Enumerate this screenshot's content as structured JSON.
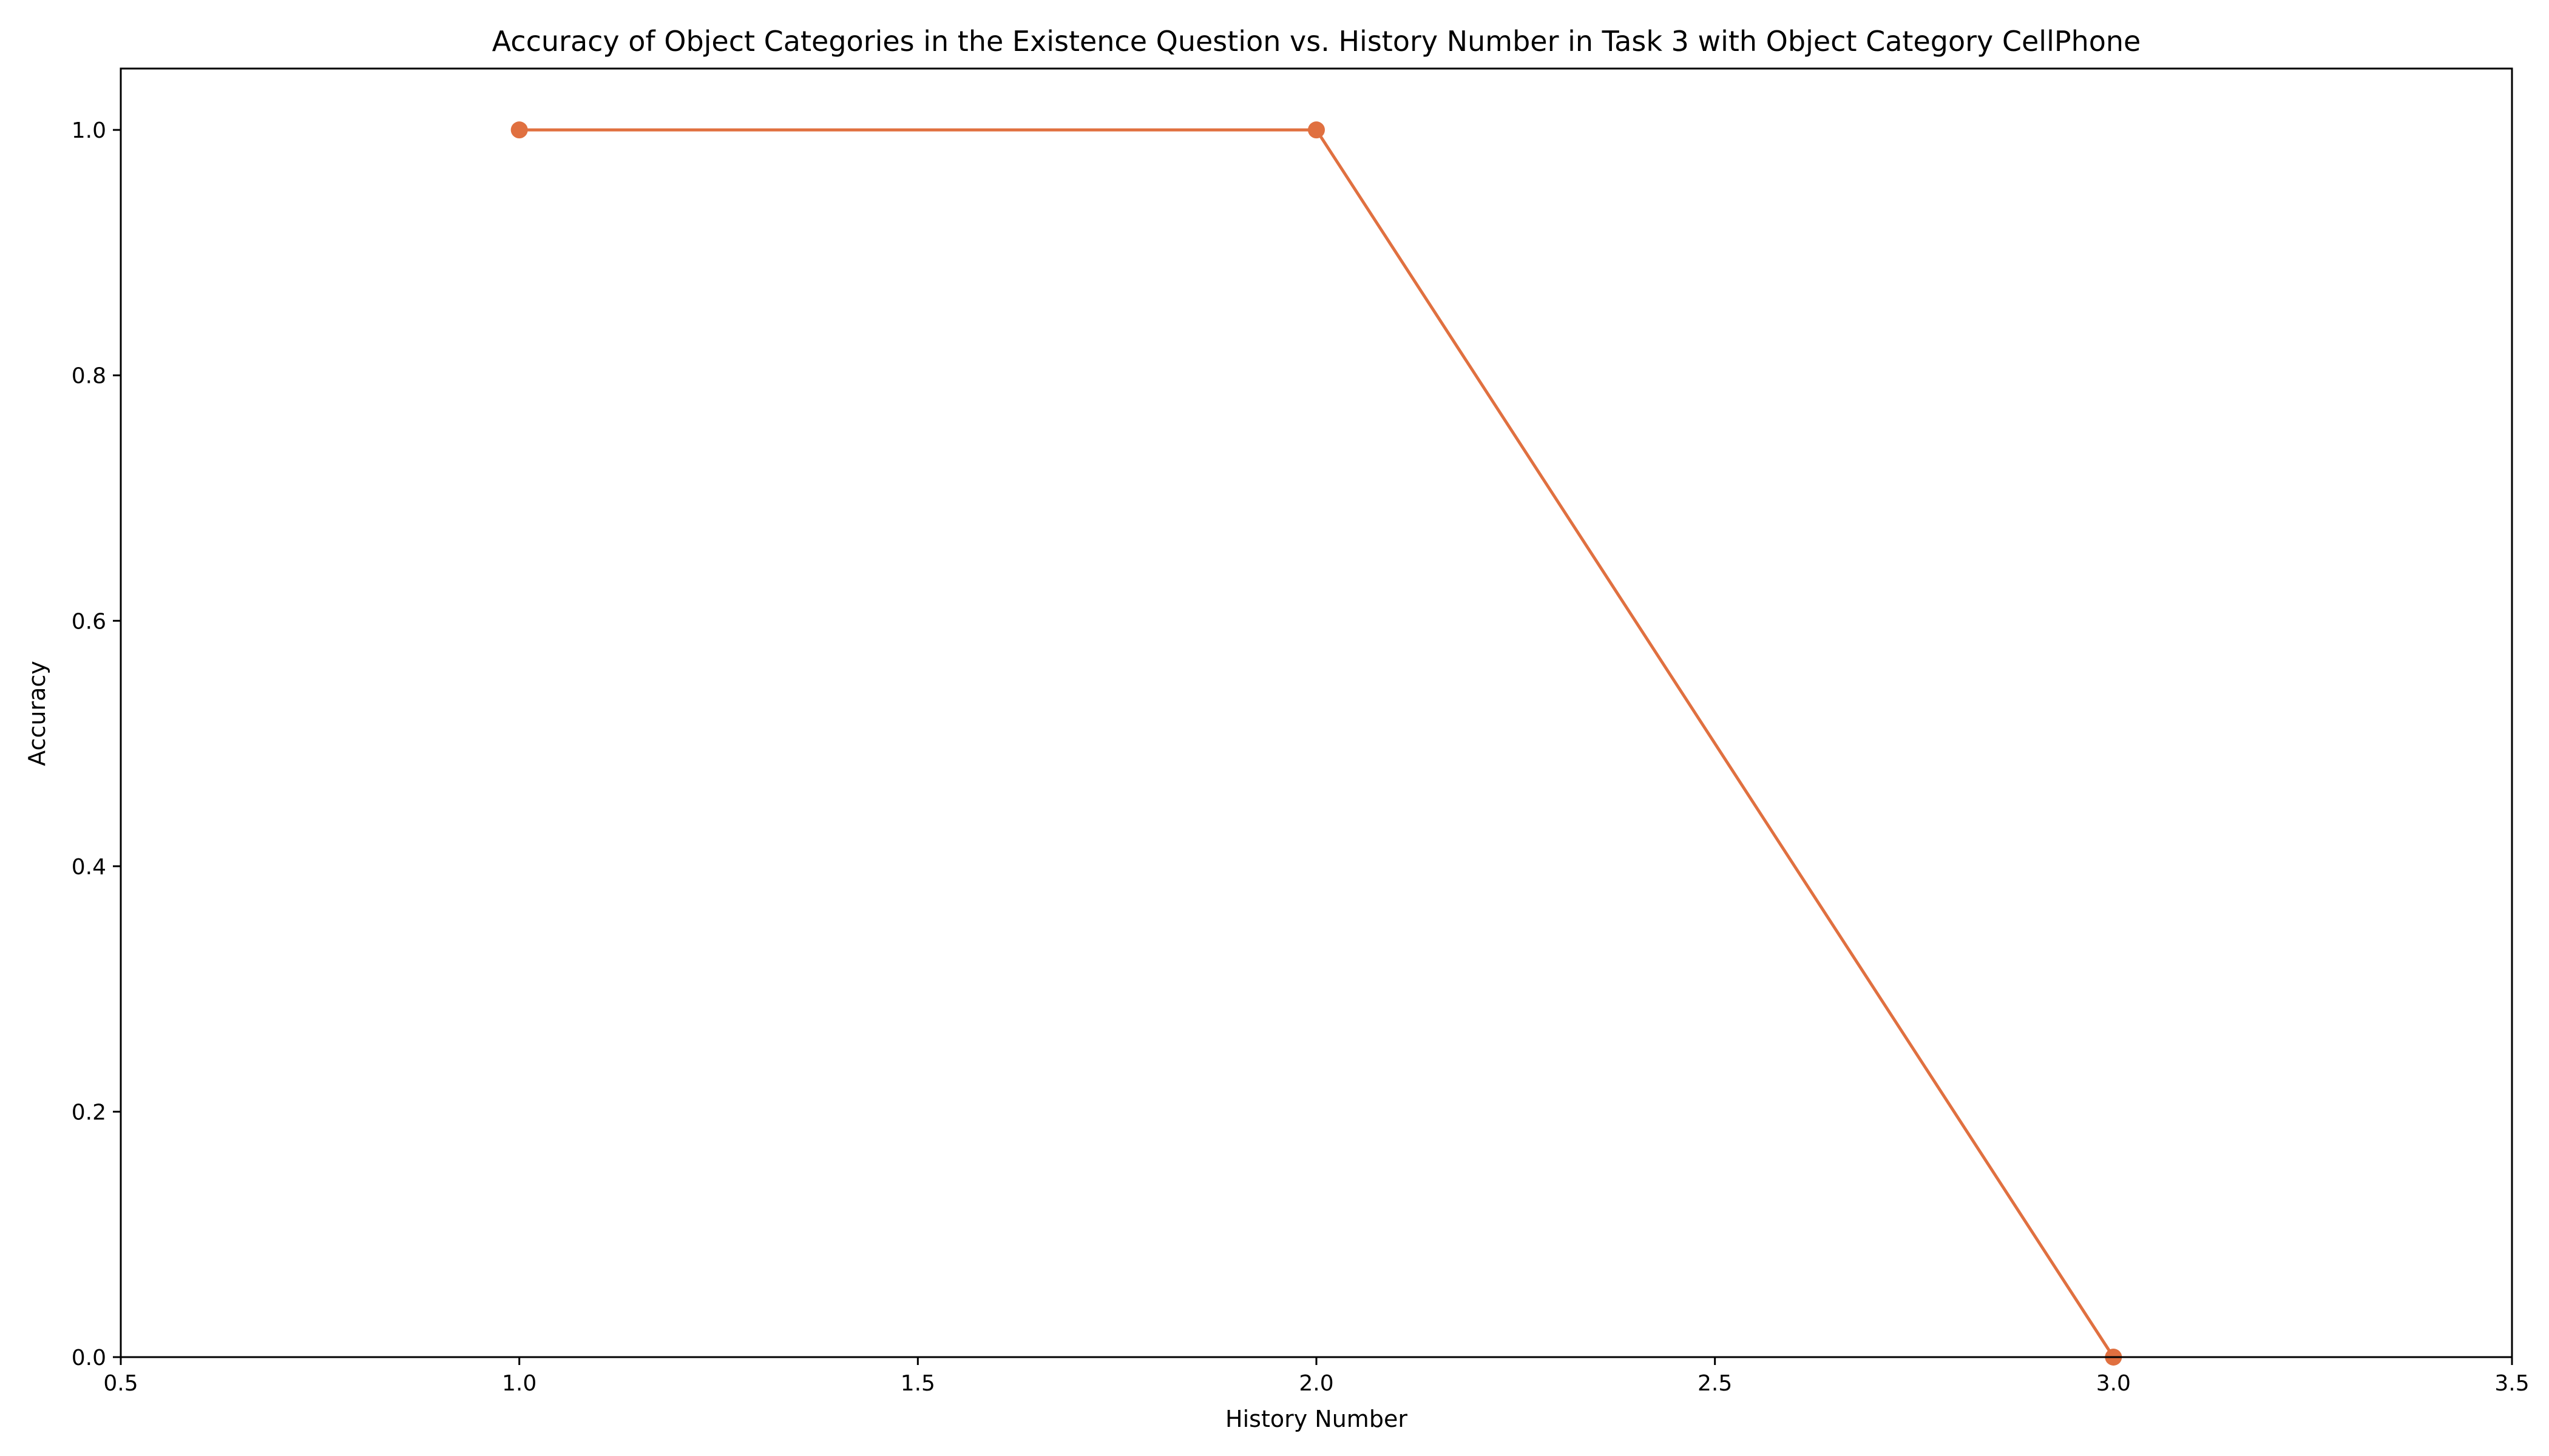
{
  "chart_data": {
    "type": "line",
    "title": "Accuracy of Object Categories in the Existence Question vs. History Number in Task 3 with Object Category CellPhone",
    "xlabel": "History Number",
    "ylabel": "Accuracy",
    "xlim": [
      0.5,
      3.5
    ],
    "ylim": [
      0.0,
      1.05
    ],
    "xticks": [
      "0.5",
      "1.0",
      "1.5",
      "2.0",
      "2.5",
      "3.0",
      "3.5"
    ],
    "xtick_values": [
      0.5,
      1.0,
      1.5,
      2.0,
      2.5,
      3.0,
      3.5
    ],
    "yticks": [
      "0.0",
      "0.2",
      "0.4",
      "0.6",
      "0.8",
      "1.0"
    ],
    "ytick_values": [
      0.0,
      0.2,
      0.4,
      0.6,
      0.8,
      1.0
    ],
    "grid": false,
    "legend": "none",
    "series": [
      {
        "color": "#e07040",
        "marker": "circle",
        "x": [
          1.0,
          2.0,
          3.0
        ],
        "y": [
          1.0,
          1.0,
          0.0
        ]
      }
    ]
  }
}
